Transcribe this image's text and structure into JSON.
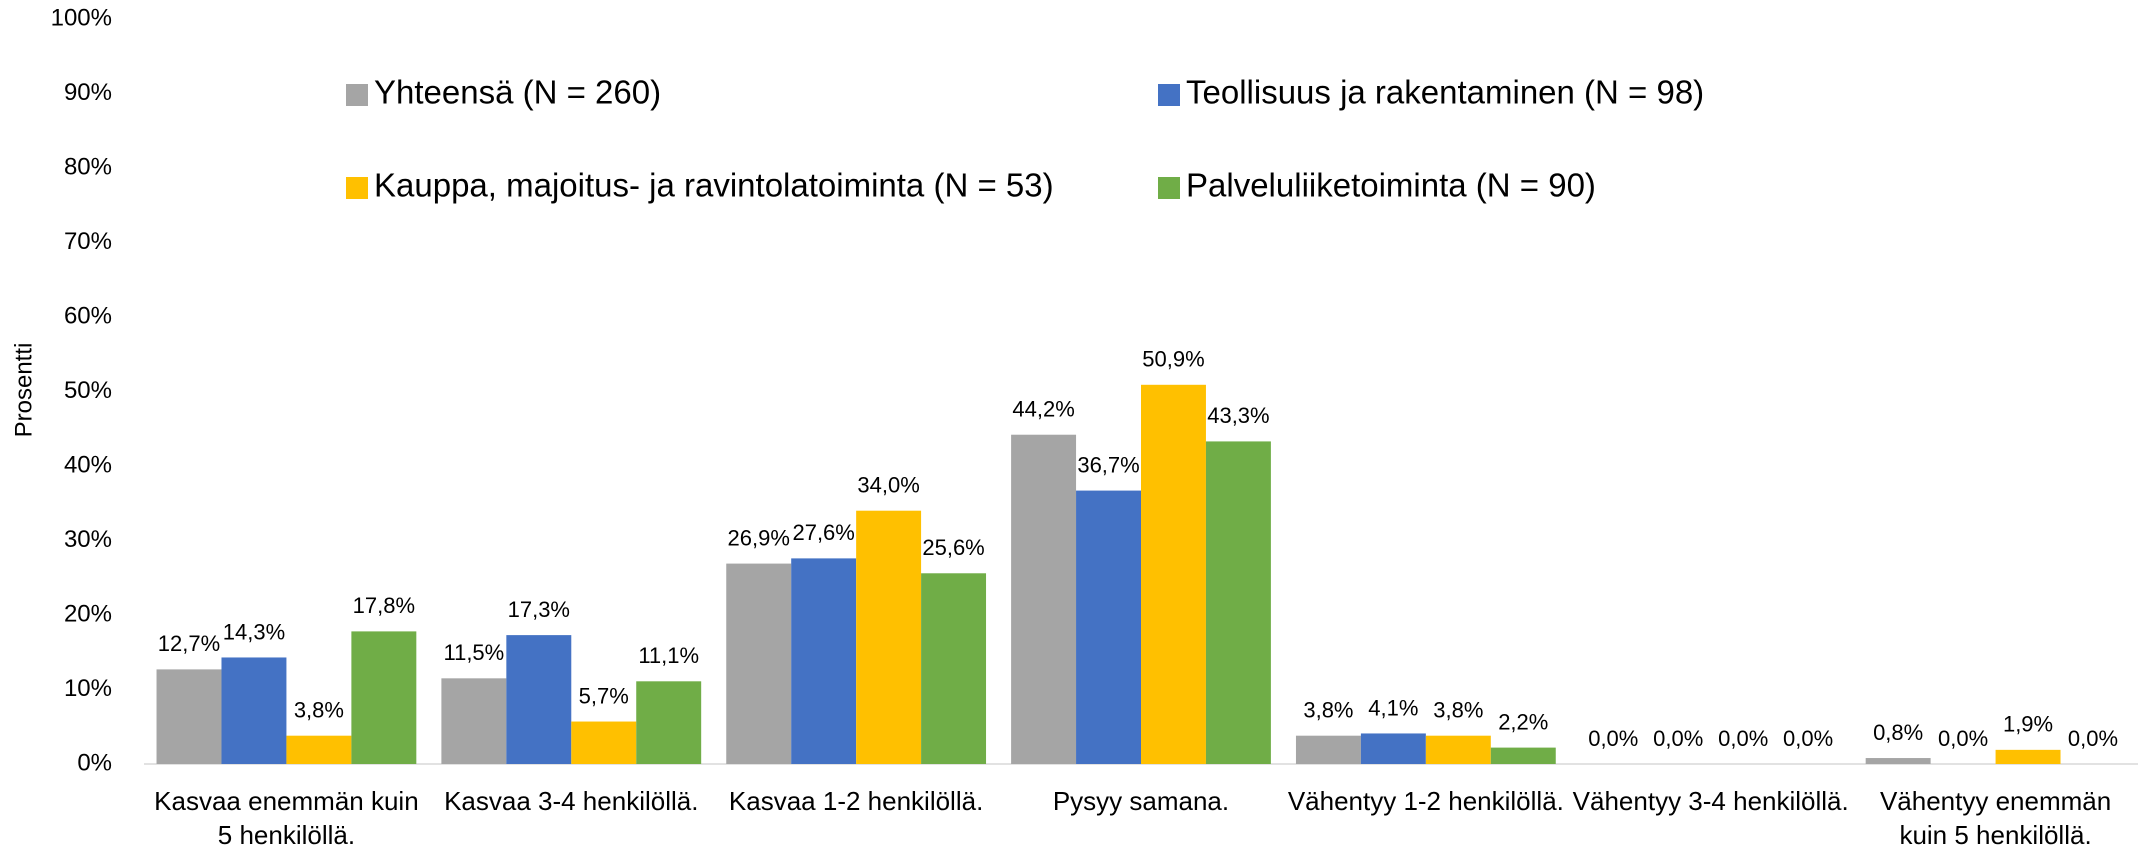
{
  "chart_data": {
    "type": "bar",
    "y_label": "Prosentti",
    "categories": [
      "Kasvaa enemmän kuin 5 henkilöllä.",
      "Kasvaa 3-4 henkilöllä.",
      "Kasvaa 1-2 henkilöllä.",
      "Pysyy samana.",
      "Vähentyy 1-2 henkilöllä.",
      "Vähentyy 3-4 henkilöllä.",
      "Vähentyy enemmän kuin 5 henkilöllä."
    ],
    "series": [
      {
        "name": "Yhteensä (N = 260)",
        "color": "#a5a5a5",
        "values": [
          12.7,
          11.5,
          26.9,
          44.2,
          3.8,
          0.0,
          0.8
        ],
        "value_labels": [
          "12,7%",
          "11,5%",
          "26,9%",
          "44,2%",
          "3,8%",
          "0,0%",
          "0,8%"
        ]
      },
      {
        "name": "Teollisuus ja rakentaminen (N = 98)",
        "color": "#4472c4",
        "values": [
          14.3,
          17.3,
          27.6,
          36.7,
          4.1,
          0.0,
          0.0
        ],
        "value_labels": [
          "14,3%",
          "17,3%",
          "27,6%",
          "36,7%",
          "4,1%",
          "0,0%",
          "0,0%"
        ]
      },
      {
        "name": "Kauppa, majoitus- ja ravintolatoiminta (N = 53)",
        "color": "#ffc000",
        "values": [
          3.8,
          5.7,
          34.0,
          50.9,
          3.8,
          0.0,
          1.9
        ],
        "value_labels": [
          "3,8%",
          "5,7%",
          "34,0%",
          "50,9%",
          "3,8%",
          "0,0%",
          "1,9%"
        ]
      },
      {
        "name": "Palveluliiketoiminta (N = 90)",
        "color": "#70ad47",
        "values": [
          17.8,
          11.1,
          25.6,
          43.3,
          2.2,
          0.0,
          0.0
        ],
        "value_labels": [
          "17,8%",
          "11,1%",
          "25,6%",
          "43,3%",
          "2,2%",
          "0,0%",
          "0,0%"
        ]
      }
    ],
    "ylim": [
      0,
      100
    ],
    "yticks": [
      {
        "value": 0,
        "label": "0%"
      },
      {
        "value": 10,
        "label": "10%"
      },
      {
        "value": 20,
        "label": "20%"
      },
      {
        "value": 30,
        "label": "30%"
      },
      {
        "value": 40,
        "label": "40%"
      },
      {
        "value": 50,
        "label": "50%"
      },
      {
        "value": 60,
        "label": "60%"
      },
      {
        "value": 70,
        "label": "70%"
      },
      {
        "value": 80,
        "label": "80%"
      },
      {
        "value": 90,
        "label": "90%"
      },
      {
        "value": 100,
        "label": "100%"
      }
    ],
    "grid": false,
    "legend": "top"
  }
}
